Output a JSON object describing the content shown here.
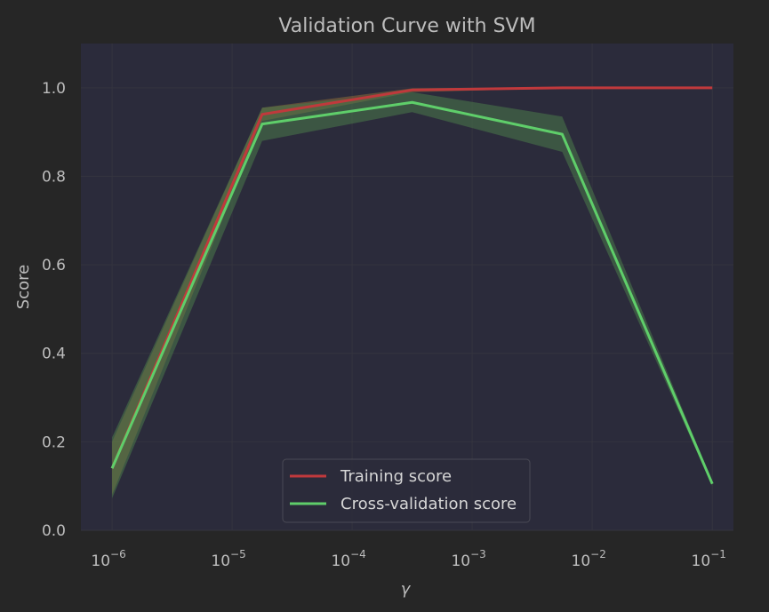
{
  "chart_data": {
    "type": "line",
    "title": "Validation Curve with SVM",
    "xlabel": "γ",
    "ylabel": "Score",
    "x_scale": "log",
    "x": [
      1e-06,
      1.78e-05,
      0.000316,
      0.00562,
      0.1
    ],
    "xlim": [
      5.5e-07,
      0.15
    ],
    "ylim": [
      0.0,
      1.1
    ],
    "x_ticks": [
      {
        "value": 1e-06,
        "base": "10",
        "exp": "−6"
      },
      {
        "value": 1e-05,
        "base": "10",
        "exp": "−5"
      },
      {
        "value": 0.0001,
        "base": "10",
        "exp": "−4"
      },
      {
        "value": 0.001,
        "base": "10",
        "exp": "−3"
      },
      {
        "value": 0.01,
        "base": "10",
        "exp": "−2"
      },
      {
        "value": 0.1,
        "base": "10",
        "exp": "−1"
      }
    ],
    "y_ticks": [
      {
        "value": 0.0,
        "label": "0.0"
      },
      {
        "value": 0.2,
        "label": "0.2"
      },
      {
        "value": 0.4,
        "label": "0.4"
      },
      {
        "value": 0.6,
        "label": "0.6"
      },
      {
        "value": 0.8,
        "label": "0.8"
      },
      {
        "value": 1.0,
        "label": "1.0"
      }
    ],
    "grid": true,
    "legend_position": "bottom-center",
    "series": [
      {
        "name": "Training score",
        "color": "#c0393c",
        "fill_color": "#8a6a3a",
        "values": [
          0.14,
          0.94,
          0.995,
          1.0,
          1.0
        ],
        "band_lower": [
          0.08,
          0.925,
          0.99,
          0.999,
          0.999
        ],
        "band_upper": [
          0.2,
          0.955,
          0.999,
          1.0,
          1.0
        ]
      },
      {
        "name": "Cross-validation score",
        "color": "#5fce6a",
        "fill_color": "#4a7a4a",
        "values": [
          0.14,
          0.918,
          0.967,
          0.895,
          0.105
        ],
        "band_lower": [
          0.072,
          0.88,
          0.945,
          0.855,
          0.1
        ],
        "band_upper": [
          0.21,
          0.955,
          0.99,
          0.935,
          0.11
        ]
      }
    ]
  }
}
